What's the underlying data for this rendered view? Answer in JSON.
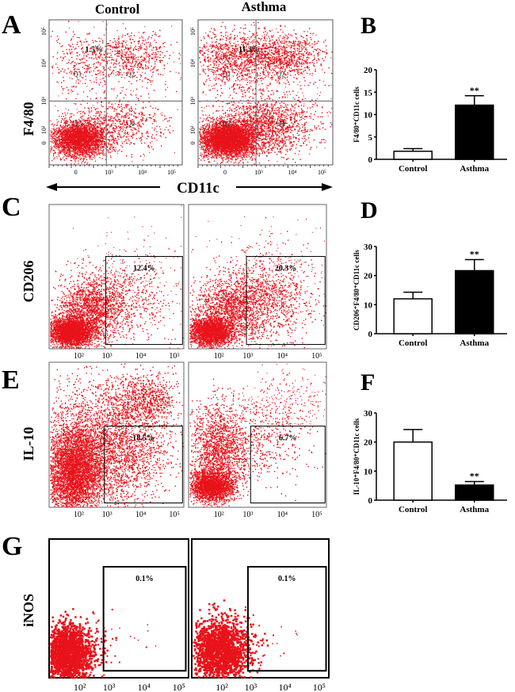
{
  "panel_letters": {
    "a": "A",
    "b": "B",
    "c": "C",
    "d": "D",
    "e": "E",
    "f": "F",
    "g": "G"
  },
  "column_headers": {
    "control": "Control",
    "asthma": "Asthma"
  },
  "axis_labels": {
    "x": "CD11c",
    "a_y": "F4/80",
    "c_y": "CD206",
    "e_y": "IL-10",
    "g_y": "iNOS"
  },
  "quadrant_labels": [
    "Q1",
    "Q2",
    "Q3",
    "Q4"
  ],
  "flow_x_ticks_a": [
    "0",
    "10³",
    "10⁴",
    "10⁵"
  ],
  "flow_y_ticks_a": [
    "0",
    "10²",
    "10³",
    "10⁴",
    "10⁵"
  ],
  "flow_x_ticks": [
    "10²",
    "10³",
    "10⁴",
    "10⁵"
  ],
  "gates": {
    "a_control": "1.5%",
    "a_asthma": "11.3%",
    "c_control": "12.4%",
    "c_asthma": "20.3%",
    "e_control": "18.5%",
    "e_asthma": "6.7%",
    "g_control": "0.1%",
    "g_asthma": "0.1%"
  },
  "colors": {
    "dots": "#e8121a",
    "bar_control": "#ffffff",
    "bar_asthma": "#000000"
  },
  "chart_data": [
    {
      "panel": "B",
      "type": "bar",
      "categories": [
        "Control",
        "Asthma"
      ],
      "values": [
        1.8,
        12.1
      ],
      "errors": [
        0.6,
        2.1
      ],
      "ylabel": "F4/80⁺CD11c cells",
      "ylim": [
        0,
        20
      ],
      "yticks": [
        0,
        5,
        10,
        15,
        20
      ],
      "annotations": [
        "",
        "**"
      ]
    },
    {
      "panel": "D",
      "type": "bar",
      "categories": [
        "Control",
        "Asthma"
      ],
      "values": [
        12,
        21.7
      ],
      "errors": [
        2.3,
        3.8
      ],
      "ylabel": "CD206⁺F4/80⁺CD11c cells",
      "ylim": [
        0,
        30
      ],
      "yticks": [
        0,
        10,
        20,
        30
      ],
      "annotations": [
        "",
        "**"
      ]
    },
    {
      "panel": "F",
      "type": "bar",
      "categories": [
        "Control",
        "Asthma"
      ],
      "values": [
        20,
        5.2
      ],
      "errors": [
        4.3,
        1.2
      ],
      "ylabel": "IL-10⁺F4/80⁺CD11c cells",
      "ylim": [
        0,
        30
      ],
      "yticks": [
        0,
        10,
        20,
        30
      ],
      "annotations": [
        "",
        "**"
      ]
    }
  ]
}
